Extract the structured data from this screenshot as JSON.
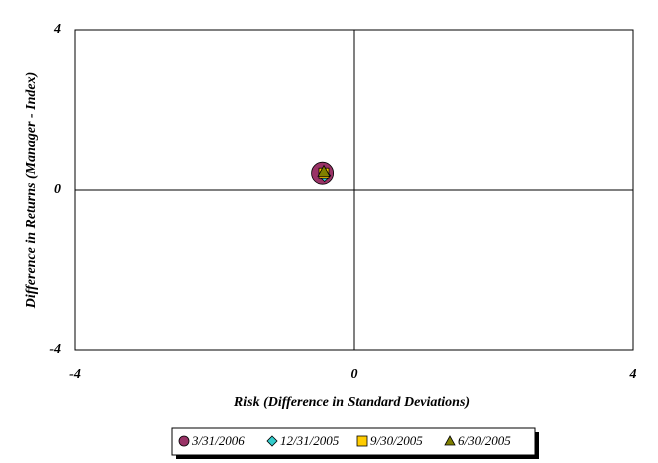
{
  "chart_data": {
    "type": "scatter",
    "x_label": "Risk (Difference in Standard Deviations)",
    "y_label": "Difference in Returns (Manager - Index)",
    "xlim": [
      -4,
      4
    ],
    "ylim": [
      -4,
      4
    ],
    "xticks": [
      -4,
      0,
      4
    ],
    "yticks": [
      -4,
      0,
      4
    ],
    "legend": "bottom",
    "series": [
      {
        "name": "3/31/2006",
        "color": "#993366",
        "marker": "circle",
        "x": [
          -0.45
        ],
        "y": [
          0.42
        ]
      },
      {
        "name": "12/31/2005",
        "color": "#33cccc",
        "marker": "diamond",
        "x": [
          -0.42
        ],
        "y": [
          0.36
        ]
      },
      {
        "name": "9/30/2005",
        "color": "#ffcc00",
        "marker": "square",
        "x": [
          -0.43
        ],
        "y": [
          0.42
        ]
      },
      {
        "name": "6/30/2005",
        "color": "#808000",
        "marker": "triangle",
        "x": [
          -0.43
        ],
        "y": [
          0.46
        ]
      }
    ]
  }
}
